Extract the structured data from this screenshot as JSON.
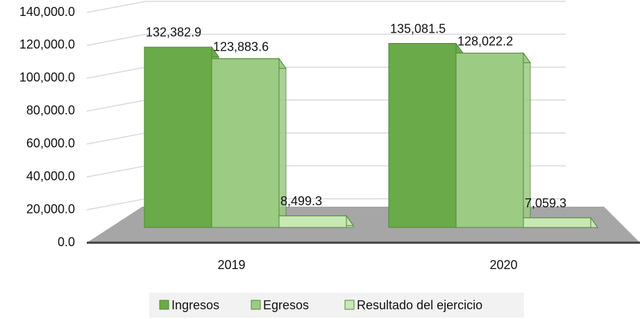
{
  "chart_data": {
    "type": "bar",
    "categories": [
      "2019",
      "2020"
    ],
    "series": [
      {
        "name": "Ingresos",
        "color": "#6aaa48",
        "values": [
          132382.9,
          135081.5
        ],
        "value_labels": [
          "132,382.9",
          "135,081.5"
        ]
      },
      {
        "name": "Egresos",
        "color": "#9ccb84",
        "values": [
          123883.6,
          128022.2
        ],
        "value_labels": [
          "123,883.6",
          "128,022.2"
        ]
      },
      {
        "name": "Resultado del ejercicio",
        "color": "#c8e8b4",
        "values": [
          8499.3,
          7059.3
        ],
        "value_labels": [
          "8,499.3",
          "7,059.3"
        ]
      }
    ],
    "ylim": [
      0,
      140000
    ],
    "yticks": [
      {
        "value": 0,
        "label": "0.0"
      },
      {
        "value": 20000,
        "label": "20,000.0"
      },
      {
        "value": 40000,
        "label": "40,000.0"
      },
      {
        "value": 60000,
        "label": "60,000.0"
      },
      {
        "value": 80000,
        "label": "80,000.0"
      },
      {
        "value": 100000,
        "label": "100,000.0"
      },
      {
        "value": 120000,
        "label": "120,000.0"
      },
      {
        "value": 140000,
        "label": "140,000.0"
      }
    ],
    "grid": true,
    "legend": "bottom"
  }
}
